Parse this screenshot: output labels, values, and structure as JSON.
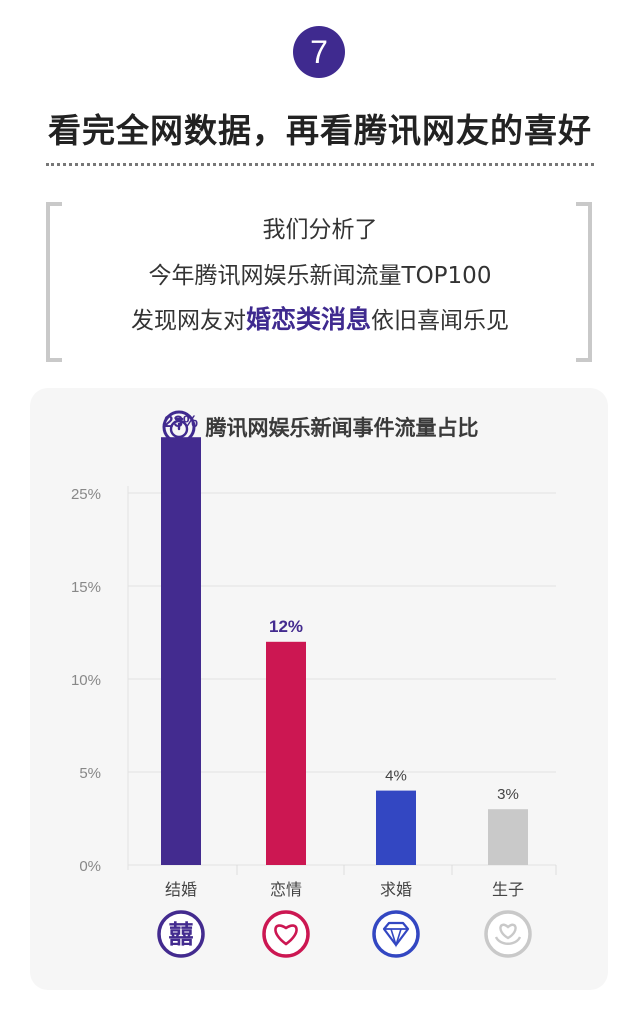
{
  "badge": "7",
  "headline": "看完全网数据，再看腾讯网友的喜好",
  "intro": {
    "line1": "我们分析了",
    "line2": "今年腾讯网娱乐新闻流量TOP100",
    "line3_prefix": "发现网友对",
    "line3_highlight": "婚恋类消息",
    "line3_suffix": "依旧喜闻乐见"
  },
  "chart_data": {
    "type": "bar",
    "title": "腾讯网娱乐新闻事件流量占比",
    "categories": [
      "结婚",
      "恋情",
      "求婚",
      "生子"
    ],
    "values": [
      23,
      12,
      4,
      3
    ],
    "value_labels": [
      "23%",
      "12%",
      "4%",
      "3%"
    ],
    "y_ticks": [
      "0%",
      "5%",
      "10%",
      "15%",
      "25%"
    ],
    "bar_colors": [
      "#432b8f",
      "#cc1752",
      "#3347c2",
      "#c9c9c9"
    ],
    "category_icons": [
      "double-happiness-icon",
      "heart-icon",
      "diamond-icon",
      "flower-icon"
    ],
    "grid": true
  }
}
